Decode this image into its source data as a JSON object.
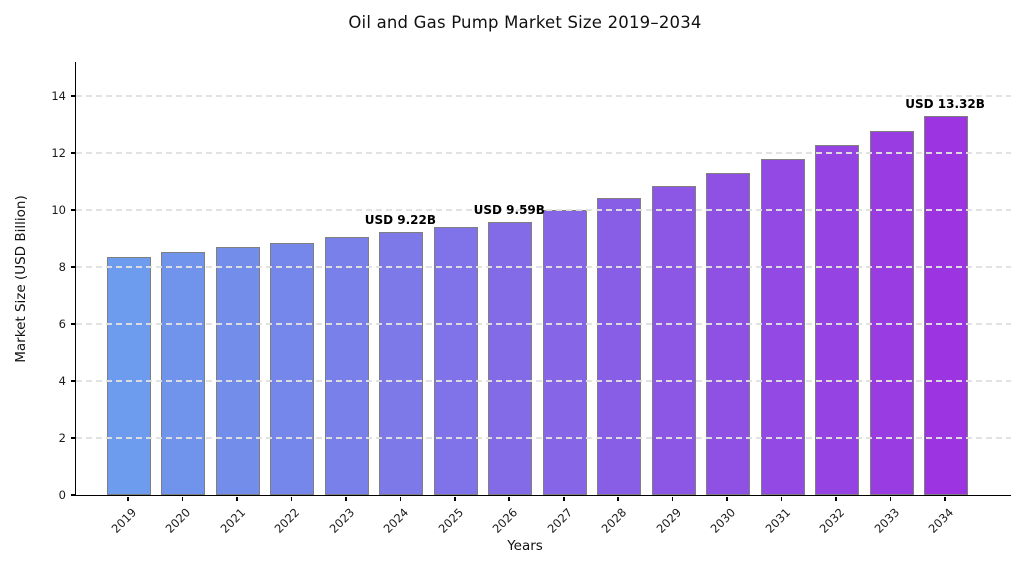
{
  "chart_data": {
    "type": "bar",
    "title": "Oil and Gas Pump Market Size 2019–2034",
    "xlabel": "Years",
    "ylabel": "Market Size (USD Billion)",
    "categories": [
      "2019",
      "2020",
      "2021",
      "2022",
      "2023",
      "2024",
      "2025",
      "2026",
      "2027",
      "2028",
      "2029",
      "2030",
      "2031",
      "2032",
      "2033",
      "2034"
    ],
    "values": [
      8.35,
      8.52,
      8.69,
      8.86,
      9.04,
      9.22,
      9.4,
      9.59,
      9.99,
      10.41,
      10.85,
      11.3,
      11.78,
      12.27,
      12.79,
      13.32
    ],
    "annotations": [
      {
        "category": "2024",
        "label": "USD 9.22B"
      },
      {
        "category": "2026",
        "label": "USD 9.59B"
      },
      {
        "category": "2034",
        "label": "USD 13.32B"
      }
    ],
    "yticks": [
      0,
      2,
      4,
      6,
      8,
      10,
      12,
      14
    ],
    "ylim": [
      0,
      15.2
    ],
    "grid": "horizontal-dashed",
    "legend_position": "none",
    "colors": {
      "bar_gradient_start": "#6D9BED",
      "bar_gradient_end": "#9C35E1",
      "bar_edge": "#7F7F7F",
      "gridline": "#E0E0E0",
      "axis": "#000000",
      "text": "#111111",
      "annotation_text": "#000000",
      "background": "#FFFFFF"
    }
  }
}
